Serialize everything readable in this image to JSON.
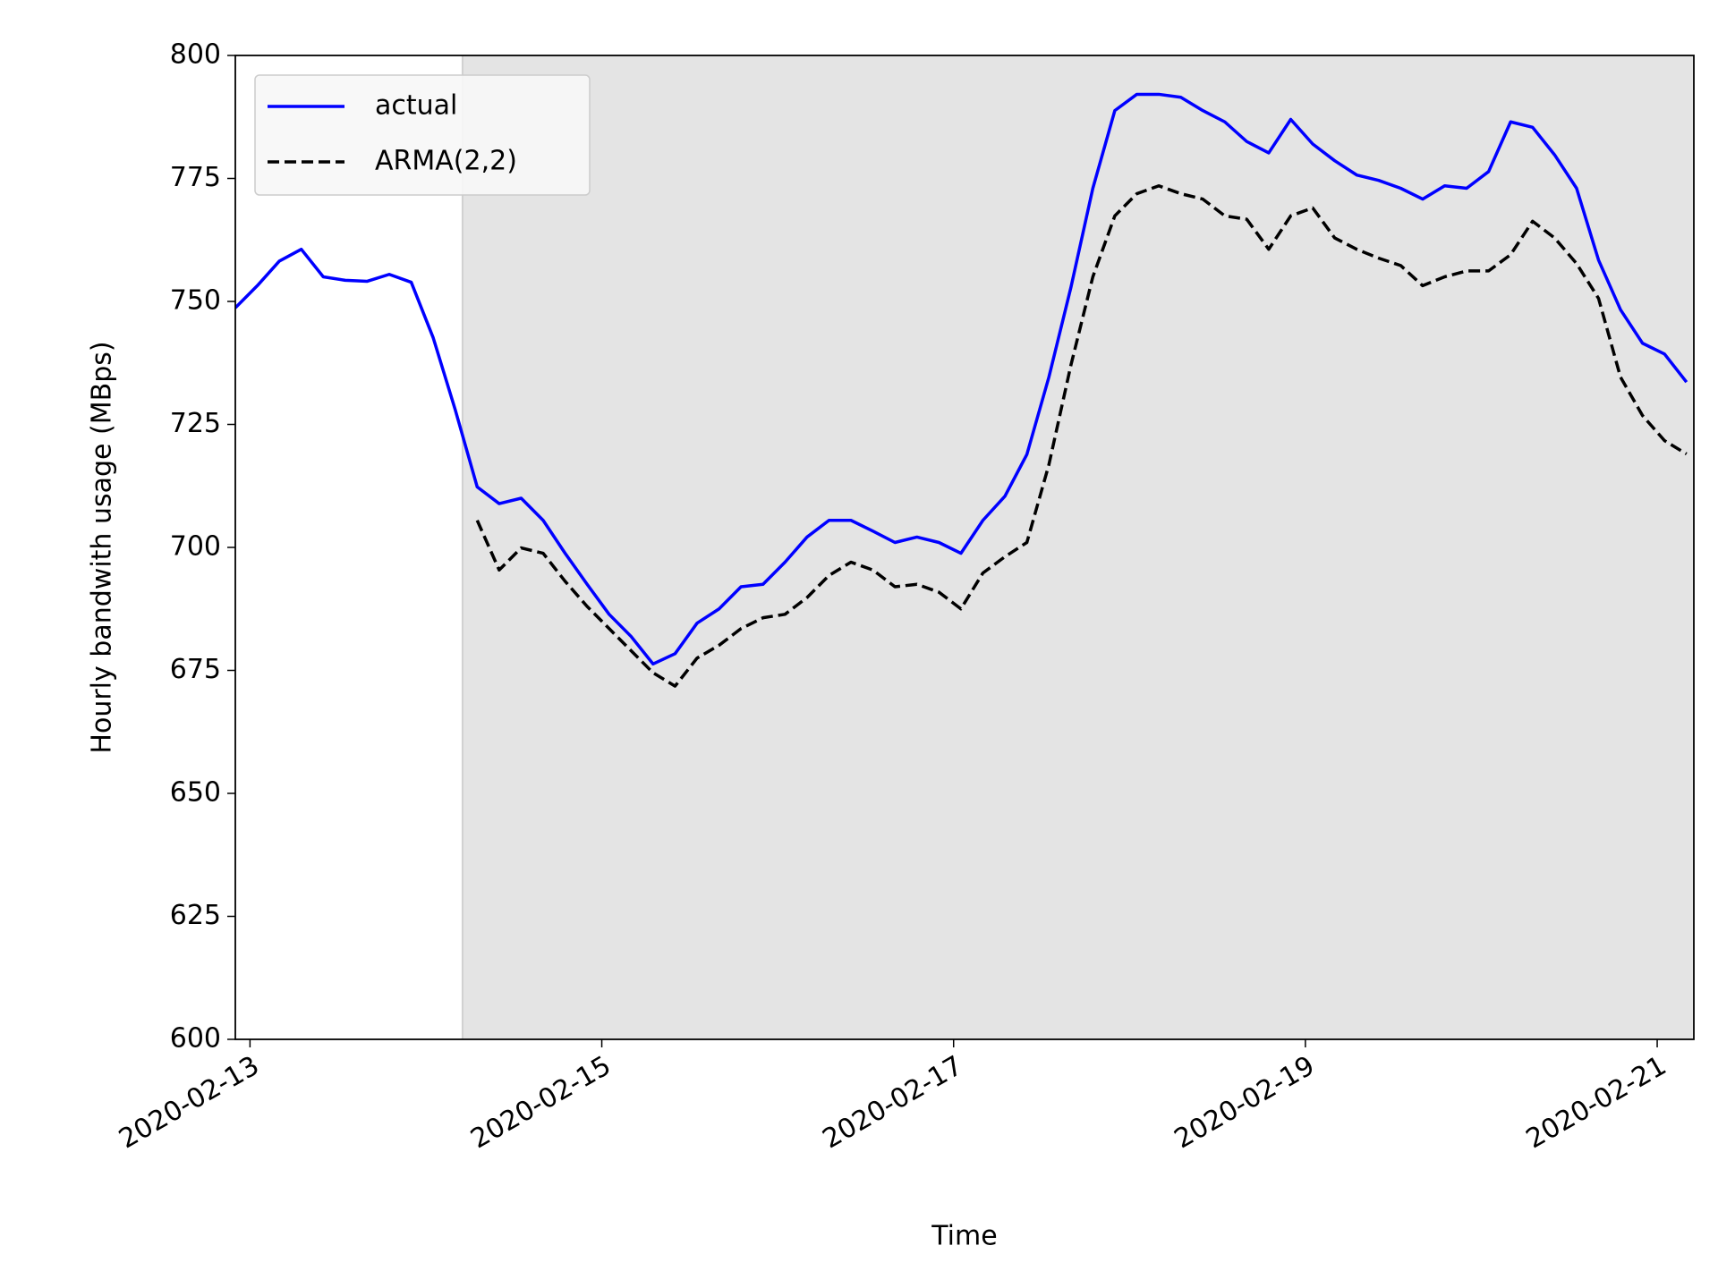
{
  "chart_data": {
    "type": "line",
    "xlabel": "Time",
    "ylabel": "Hourly bandwith usage (MBps)",
    "x": [
      "2020-02-12T22:00",
      "2020-02-13T01:00",
      "2020-02-13T04:00",
      "2020-02-13T07:00",
      "2020-02-13T10:00",
      "2020-02-13T13:00",
      "2020-02-13T16:00",
      "2020-02-13T19:00",
      "2020-02-13T22:00",
      "2020-02-14T01:00",
      "2020-02-14T04:00",
      "2020-02-14T07:00",
      "2020-02-14T10:00",
      "2020-02-14T13:00",
      "2020-02-14T16:00",
      "2020-02-14T19:00",
      "2020-02-14T22:00",
      "2020-02-15T01:00",
      "2020-02-15T04:00",
      "2020-02-15T07:00",
      "2020-02-15T10:00",
      "2020-02-15T13:00",
      "2020-02-15T16:00",
      "2020-02-15T19:00",
      "2020-02-15T22:00",
      "2020-02-16T01:00",
      "2020-02-16T04:00",
      "2020-02-16T07:00",
      "2020-02-16T10:00",
      "2020-02-16T13:00",
      "2020-02-16T16:00",
      "2020-02-16T19:00",
      "2020-02-16T22:00",
      "2020-02-17T01:00",
      "2020-02-17T04:00",
      "2020-02-17T07:00",
      "2020-02-17T10:00",
      "2020-02-17T13:00",
      "2020-02-17T16:00",
      "2020-02-17T19:00",
      "2020-02-17T22:00",
      "2020-02-18T01:00",
      "2020-02-18T04:00",
      "2020-02-18T07:00",
      "2020-02-18T10:00",
      "2020-02-18T13:00",
      "2020-02-18T16:00",
      "2020-02-18T19:00",
      "2020-02-18T22:00",
      "2020-02-19T01:00",
      "2020-02-19T04:00",
      "2020-02-19T07:00",
      "2020-02-19T10:00",
      "2020-02-19T13:00",
      "2020-02-19T16:00",
      "2020-02-19T19:00",
      "2020-02-19T22:00",
      "2020-02-20T01:00",
      "2020-02-20T04:00",
      "2020-02-20T07:00",
      "2020-02-20T10:00",
      "2020-02-20T13:00",
      "2020-02-20T16:00",
      "2020-02-20T19:00",
      "2020-02-20T22:00",
      "2020-02-21T01:00",
      "2020-02-21T04:00"
    ],
    "series": [
      {
        "name": "actual",
        "color": "#0000ff",
        "dash": false,
        "values": [
          748.7,
          753.2,
          758.2,
          760.6,
          755,
          754.3,
          754.1,
          755.5,
          753.9,
          742.6,
          728,
          712.3,
          708.9,
          710,
          705.5,
          698.8,
          692.5,
          686.4,
          681.9,
          676.3,
          678.4,
          684.6,
          687.5,
          692,
          692.5,
          697,
          702.1,
          705.5,
          705.5,
          703.3,
          701,
          702.1,
          701,
          698.8,
          705.5,
          710.4,
          718.9,
          734.6,
          752.8,
          773,
          788.8,
          792.1,
          792.1,
          791.5,
          788.8,
          786.5,
          782.5,
          780.2,
          787,
          782,
          778.6,
          775.7,
          774.6,
          773,
          770.8,
          773.5,
          773,
          776.4,
          786.5,
          785.4,
          779.8,
          773,
          758.4,
          748.3,
          741.5,
          739.3,
          733.6
        ]
      },
      {
        "name": "ARMA(2,2)",
        "color": "#000000",
        "dash": true,
        "values": [
          null,
          null,
          null,
          null,
          null,
          null,
          null,
          null,
          null,
          null,
          null,
          705.5,
          695.4,
          699.9,
          698.8,
          693.1,
          688,
          683.5,
          679,
          674.5,
          671.8,
          677.5,
          680.1,
          683.5,
          685.7,
          686.4,
          689.8,
          694.3,
          697,
          695.4,
          692,
          692.5,
          690.9,
          687.5,
          694.8,
          698.1,
          701,
          716.8,
          737,
          755,
          767.4,
          771.9,
          773.5,
          771.9,
          770.8,
          767.4,
          766.7,
          760.6,
          767.4,
          769,
          762.9,
          760.6,
          758.8,
          757.3,
          753.2,
          755,
          756.2,
          756.2,
          759.5,
          766.3,
          762.9,
          757.7,
          750.6,
          734.6,
          726.8,
          721.7,
          719
        ]
      }
    ],
    "shaded_region": {
      "start": "2020-02-14T05:00",
      "end": "2020-02-21T05:00",
      "color": "#e4e4e4"
    },
    "xlim": [
      "2020-02-12T22:00",
      "2020-02-21T05:00"
    ],
    "xticks": [
      "2020-02-13",
      "2020-02-15",
      "2020-02-17",
      "2020-02-19",
      "2020-02-21"
    ],
    "ylim": [
      600,
      800
    ],
    "yticks": [
      600,
      625,
      650,
      675,
      700,
      725,
      750,
      775,
      800
    ],
    "legend": "upper left",
    "grid": false
  }
}
